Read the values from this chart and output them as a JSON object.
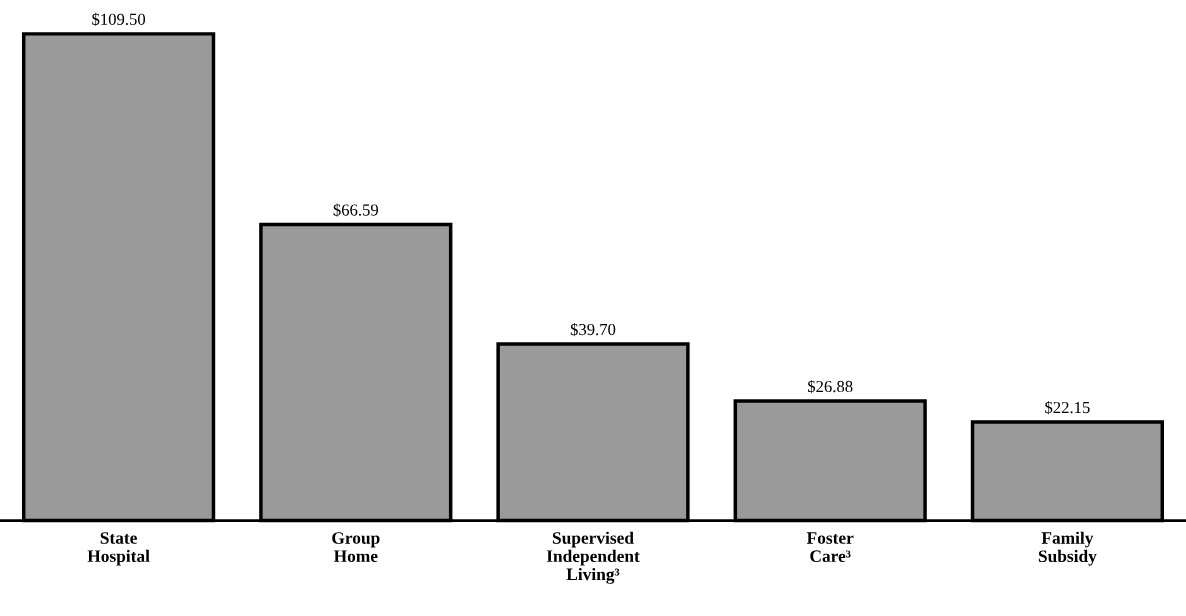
{
  "chart_data": {
    "type": "bar",
    "categories": [
      "State\nHospital",
      "Group\nHome",
      "Supervised\nIndependent\nLiving³",
      "Foster\nCare³",
      "Family\nSubsidy"
    ],
    "values": [
      109.5,
      66.59,
      39.7,
      26.88,
      22.15
    ],
    "value_labels": [
      "$109.50",
      "$66.59",
      "$39.70",
      "$26.88",
      "$22.15"
    ],
    "color": "#9a9a9a",
    "grid": false,
    "legend": false
  }
}
